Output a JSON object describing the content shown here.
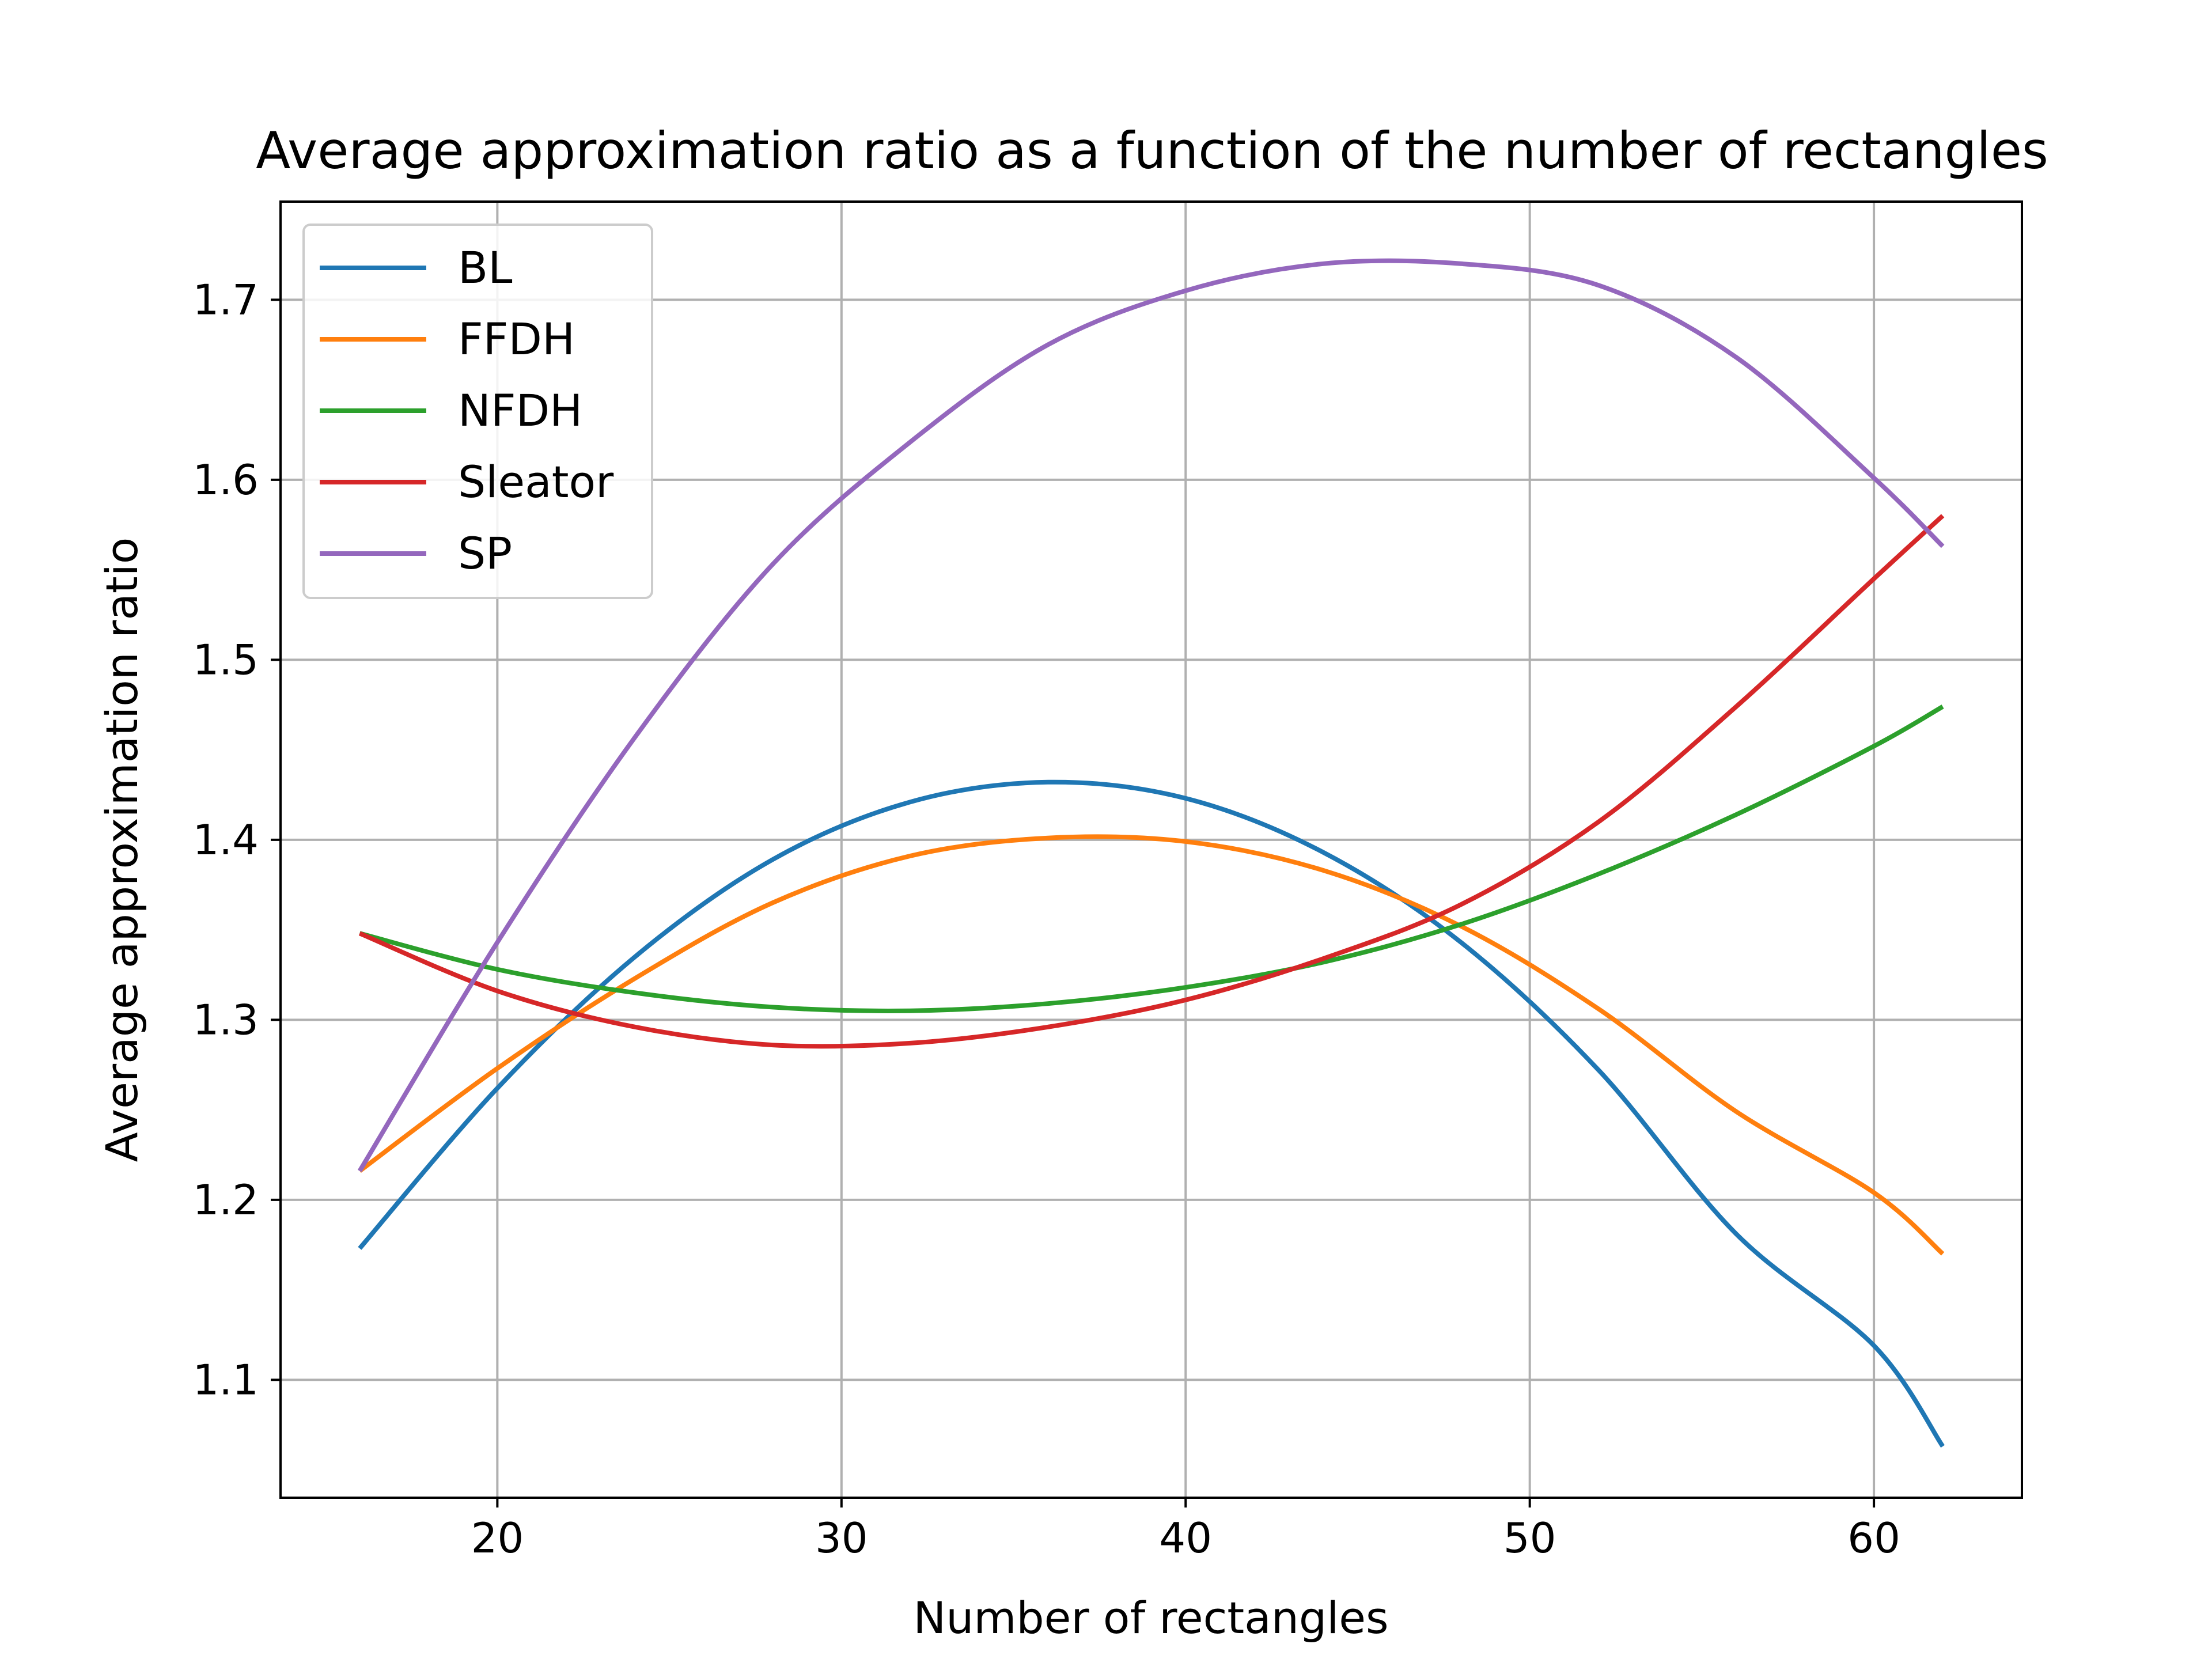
{
  "chart_data": {
    "type": "line",
    "title": "Average approximation ratio as a function of the number of rectangles",
    "xlabel": "Number of rectangles",
    "ylabel": "Average approximation ratio",
    "xlim": [
      13.7,
      64.3
    ],
    "ylim": [
      1.0345,
      1.7545
    ],
    "xticks": [
      20,
      30,
      40,
      50,
      60
    ],
    "yticks": [
      1.1,
      1.2,
      1.3,
      1.4,
      1.5,
      1.6,
      1.7
    ],
    "xtick_labels": [
      "20",
      "30",
      "40",
      "50",
      "60"
    ],
    "ytick_labels": [
      "1.1",
      "1.2",
      "1.3",
      "1.4",
      "1.5",
      "1.6",
      "1.7"
    ],
    "grid": true,
    "legend_position": "upper-left",
    "x": [
      16,
      20,
      24,
      28,
      32,
      36,
      40,
      44,
      48,
      52,
      56,
      60,
      62
    ],
    "series": [
      {
        "name": "BL",
        "color": "#1f77b4",
        "values": [
          1.173,
          1.262,
          1.335,
          1.389,
          1.421,
          1.432,
          1.423,
          1.393,
          1.343,
          1.272,
          1.181,
          1.119,
          1.063
        ]
      },
      {
        "name": "FFDH",
        "color": "#ff7f0e",
        "values": [
          1.216,
          1.273,
          1.323,
          1.365,
          1.391,
          1.401,
          1.399,
          1.383,
          1.352,
          1.306,
          1.249,
          1.204,
          1.17
        ]
      },
      {
        "name": "NFDH",
        "color": "#2ca02c",
        "values": [
          1.348,
          1.328,
          1.315,
          1.307,
          1.305,
          1.309,
          1.318,
          1.332,
          1.353,
          1.381,
          1.414,
          1.452,
          1.474
        ]
      },
      {
        "name": "Sleator",
        "color": "#d62728",
        "values": [
          1.348,
          1.316,
          1.296,
          1.286,
          1.287,
          1.296,
          1.311,
          1.334,
          1.364,
          1.41,
          1.474,
          1.545,
          1.58
        ]
      },
      {
        "name": "SP",
        "color": "#9467bd",
        "values": [
          1.216,
          1.343,
          1.457,
          1.553,
          1.621,
          1.675,
          1.705,
          1.72,
          1.72,
          1.708,
          1.668,
          1.601,
          1.563
        ]
      }
    ]
  }
}
